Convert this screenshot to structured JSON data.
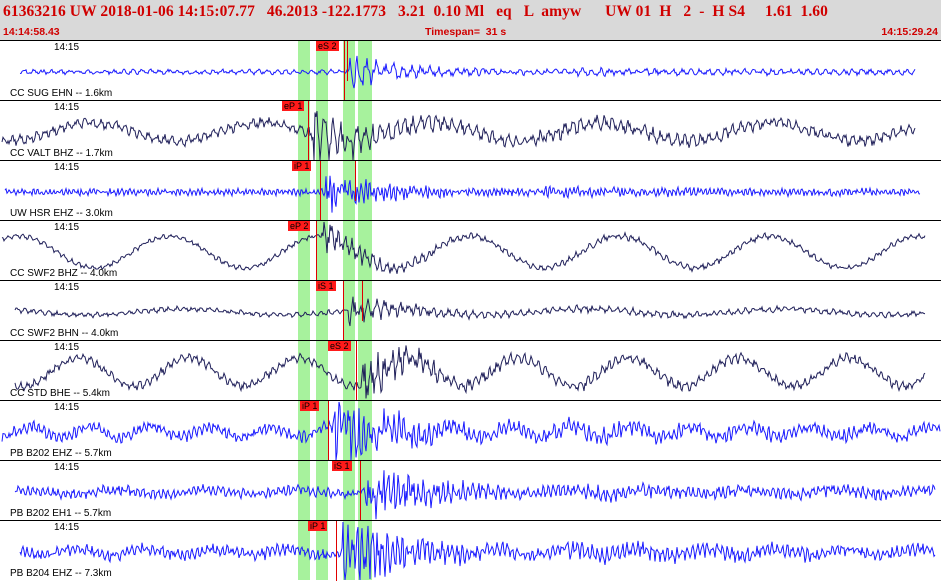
{
  "header": {
    "title": "61363216 UW 2018-01-06 14:15:07.77   46.2013 -122.1773   3.21  0.10 Ml   eq   L  amyw      UW 01  H   2  -  H S4     1.61  1.60",
    "start_time": "14:14:58.43",
    "timespan": "Timespan=  31 s",
    "end_time": "14:15:29.24"
  },
  "traces": [
    {
      "tick": "14:15",
      "label": "CC SUG EHN -- 1.6km",
      "color": "#1a1aff",
      "picks": [
        {
          "text": "eS 2"
        }
      ]
    },
    {
      "tick": "14:15",
      "label": "CC VALT BHZ -- 1.7km",
      "color": "#20205a",
      "picks": [
        {
          "text": "eP 1"
        }
      ]
    },
    {
      "tick": "14:15",
      "label": "UW HSR EHZ -- 3.0km",
      "color": "#1a1aff",
      "picks": [
        {
          "text": "iP 1"
        }
      ]
    },
    {
      "tick": "14:15",
      "label": "CC SWF2 BHZ -- 4.0km",
      "color": "#20205a",
      "picks": [
        {
          "text": "eP 2"
        }
      ]
    },
    {
      "tick": "14:15",
      "label": "CC SWF2 BHN -- 4.0km",
      "color": "#20205a",
      "picks": [
        {
          "text": "iS 1"
        }
      ]
    },
    {
      "tick": "14:15",
      "label": "CC STD BHE -- 5.4km",
      "color": "#20205a",
      "picks": [
        {
          "text": "eS 2"
        }
      ]
    },
    {
      "tick": "14:15",
      "label": "PB B202 EHZ -- 5.7km",
      "color": "#1a1aff",
      "picks": [
        {
          "text": "iP 1"
        }
      ]
    },
    {
      "tick": "14:15",
      "label": "PB B202 EH1 -- 5.7km",
      "color": "#1a1aff",
      "picks": [
        {
          "text": "iS 1"
        }
      ]
    },
    {
      "tick": "14:15",
      "label": "PB B204 EHZ -- 7.3km",
      "color": "#1a1aff",
      "picks": [
        {
          "text": "iP 1"
        }
      ]
    }
  ]
}
